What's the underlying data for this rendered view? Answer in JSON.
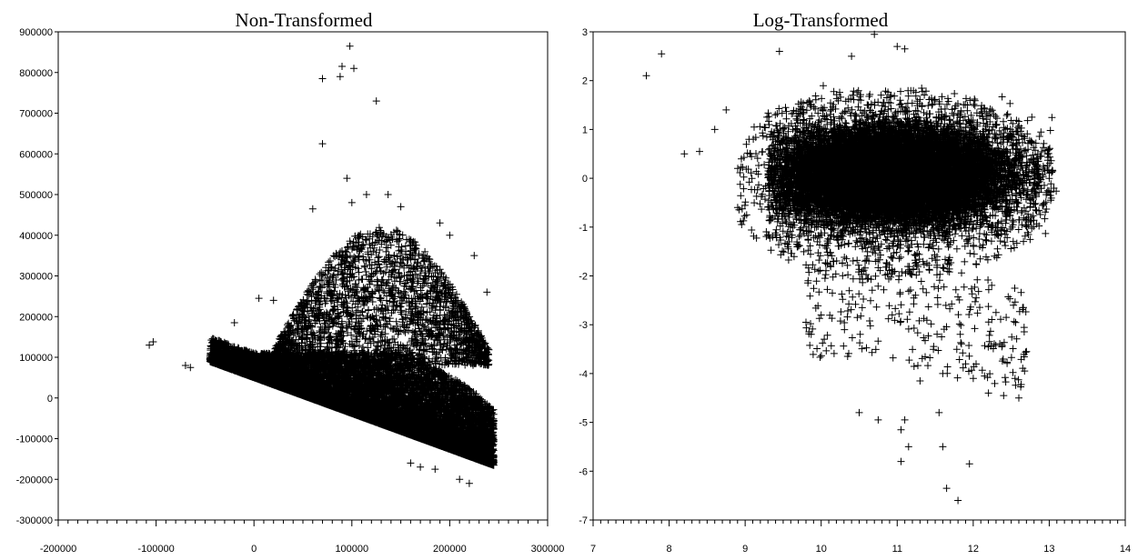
{
  "chart_data": [
    {
      "type": "scatter",
      "title": "Non-Transformed",
      "xlabel": "",
      "ylabel": "",
      "xlim": [
        -200000,
        300000
      ],
      "ylim": [
        -300000,
        900000
      ],
      "xticks": [
        -200000,
        -100000,
        0,
        100000,
        200000,
        300000
      ],
      "yticks": [
        -300000,
        -200000,
        -100000,
        0,
        100000,
        200000,
        300000,
        400000,
        500000,
        600000,
        700000,
        800000,
        900000
      ],
      "xtick_labels": [
        "-200000",
        "-100000",
        "0",
        "100000",
        "200000",
        "300000"
      ],
      "ytick_labels": [
        "-300000",
        "-200000",
        "-100000",
        "0",
        "100000",
        "200000",
        "300000",
        "400000",
        "500000",
        "600000",
        "700000",
        "800000",
        "900000"
      ],
      "marker": "+",
      "grid": false,
      "outliers": [
        [
          -107000,
          130000
        ],
        [
          -103000,
          138000
        ],
        [
          -70000,
          80000
        ],
        [
          -65000,
          75000
        ],
        [
          60000,
          465000
        ],
        [
          70000,
          785000
        ],
        [
          70000,
          625000
        ],
        [
          88000,
          790000
        ],
        [
          90000,
          815000
        ],
        [
          98000,
          865000
        ],
        [
          102000,
          810000
        ],
        [
          125000,
          730000
        ],
        [
          95000,
          540000
        ],
        [
          100000,
          480000
        ],
        [
          115000,
          500000
        ],
        [
          137000,
          500000
        ],
        [
          -20000,
          185000
        ],
        [
          5000,
          245000
        ],
        [
          20000,
          240000
        ],
        [
          150000,
          470000
        ],
        [
          190000,
          430000
        ],
        [
          200000,
          400000
        ],
        [
          225000,
          350000
        ],
        [
          238000,
          260000
        ],
        [
          243000,
          -115000
        ],
        [
          220000,
          -210000
        ],
        [
          210000,
          -200000
        ],
        [
          185000,
          -175000
        ],
        [
          170000,
          -170000
        ],
        [
          160000,
          -160000
        ],
        [
          240000,
          -20000
        ]
      ]
    },
    {
      "type": "scatter",
      "title": "Log-Transformed",
      "xlabel": "",
      "ylabel": "",
      "xlim": [
        7,
        14
      ],
      "ylim": [
        -7,
        3
      ],
      "xticks": [
        7,
        8,
        9,
        10,
        11,
        12,
        13,
        14
      ],
      "yticks": [
        -7,
        -6,
        -5,
        -4,
        -3,
        -2,
        -1,
        0,
        1,
        2,
        3
      ],
      "xtick_labels": [
        "7",
        "8",
        "9",
        "10",
        "11",
        "12",
        "13",
        "14"
      ],
      "ytick_labels": [
        "-7",
        "-6",
        "-5",
        "-4",
        "-3",
        "-2",
        "-1",
        "0",
        "1",
        "2",
        "3"
      ],
      "marker": "+",
      "grid": false,
      "outliers": [
        [
          7.7,
          2.1
        ],
        [
          7.9,
          2.55
        ],
        [
          8.2,
          0.5
        ],
        [
          8.4,
          0.55
        ],
        [
          8.6,
          1.0
        ],
        [
          8.75,
          1.4
        ],
        [
          9.45,
          2.6
        ],
        [
          10.7,
          2.95
        ],
        [
          11.0,
          2.7
        ],
        [
          11.1,
          2.65
        ],
        [
          10.4,
          2.5
        ],
        [
          10.5,
          -4.8
        ],
        [
          10.75,
          -4.95
        ],
        [
          11.05,
          -5.15
        ],
        [
          11.1,
          -4.95
        ],
        [
          11.05,
          -5.8
        ],
        [
          11.15,
          -5.5
        ],
        [
          11.55,
          -4.8
        ],
        [
          11.6,
          -5.5
        ],
        [
          11.65,
          -6.35
        ],
        [
          11.8,
          -6.6
        ],
        [
          11.95,
          -5.85
        ],
        [
          12.4,
          -4.45
        ],
        [
          12.6,
          -4.5
        ],
        [
          12.55,
          -4.1
        ],
        [
          12.7,
          -3.55
        ],
        [
          12.65,
          -2.65
        ],
        [
          9.8,
          -2.95
        ],
        [
          10.0,
          -2.8
        ],
        [
          11.3,
          -4.15
        ],
        [
          11.6,
          -4.0
        ],
        [
          12.2,
          -4.4
        ],
        [
          12.0,
          -4.1
        ],
        [
          11.9,
          -3.8
        ],
        [
          12.3,
          -2.75
        ]
      ]
    }
  ]
}
